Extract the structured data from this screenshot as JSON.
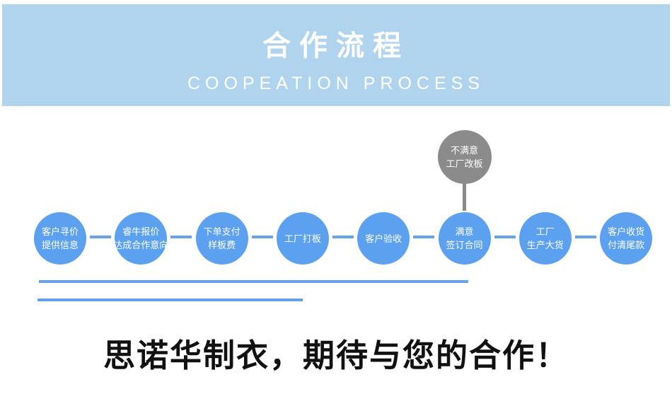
{
  "header": {
    "title": "合作流程",
    "subtitle": "COOPEATION PROCESS"
  },
  "flow": {
    "steps": [
      {
        "lines": [
          "客户寻价",
          "提供信息"
        ]
      },
      {
        "lines": [
          "睿牛报价",
          "达成合作意向"
        ]
      },
      {
        "lines": [
          "下单支付",
          "样板费"
        ]
      },
      {
        "lines": [
          "工厂打板"
        ]
      },
      {
        "lines": [
          "客户验收"
        ]
      },
      {
        "lines": [
          "满意",
          "签订合同"
        ]
      },
      {
        "lines": [
          "工厂",
          "生产大货"
        ]
      },
      {
        "lines": [
          "客户收货",
          "付清尾款"
        ]
      }
    ],
    "branch": {
      "lines": [
        "不满意",
        "工厂改板"
      ],
      "attached_to_step": 6
    }
  },
  "footer": {
    "text": "思诺华制衣，期待与您的合作！"
  },
  "colors": {
    "banner_bg": "#b0d4ee",
    "node_blue": "#5ba1f0",
    "line_blue": "#64a3e9",
    "branch_gray": "#8b8b8b",
    "footer_black": "#111111"
  }
}
